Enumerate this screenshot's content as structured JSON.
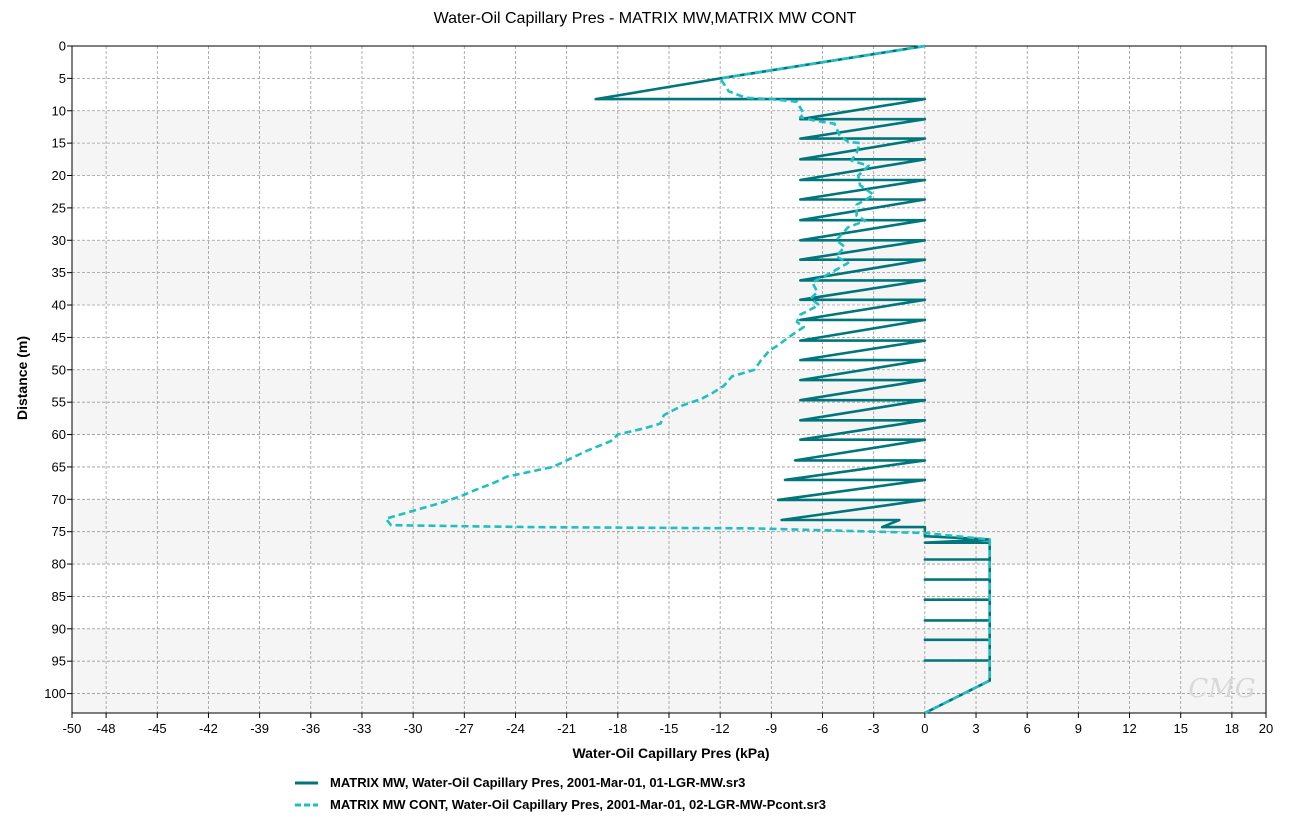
{
  "chart_data": {
    "type": "line",
    "title": "Water-Oil Capillary Pres - MATRIX MW,MATRIX MW CONT",
    "xlabel": "Water-Oil Capillary Pres (kPa)",
    "ylabel": "Distance (m)",
    "xlim": [
      -50,
      20
    ],
    "ylim": [
      0,
      103
    ],
    "y_inverted": true,
    "x_ticks": [
      -50,
      -48,
      -45,
      -42,
      -39,
      -36,
      -33,
      -30,
      -27,
      -24,
      -21,
      -18,
      -15,
      -12,
      -9,
      -6,
      -3,
      0,
      3,
      6,
      9,
      12,
      15,
      18,
      20
    ],
    "y_ticks": [
      0,
      5,
      10,
      15,
      20,
      25,
      30,
      35,
      40,
      45,
      50,
      55,
      60,
      65,
      70,
      75,
      80,
      85,
      90,
      95,
      100
    ],
    "grid": true,
    "legend_position": "bottom",
    "watermark": "CMG",
    "series": [
      {
        "name": "MATRIX MW, Water-Oil Capillary Pres, 2001-Mar-01, 01-LGR-MW.sr3",
        "color": "#00757a",
        "style": "solid",
        "points": [
          [
            0,
            0
          ],
          [
            -12,
            5
          ],
          [
            -19.3,
            8.2
          ],
          [
            0,
            8.2
          ],
          [
            -7.3,
            11.3
          ],
          [
            0,
            11.3
          ],
          [
            -7.3,
            14.3
          ],
          [
            0,
            14.3
          ],
          [
            -7.3,
            17.5
          ],
          [
            0,
            17.5
          ],
          [
            -7.3,
            20.7
          ],
          [
            0,
            20.7
          ],
          [
            -7.3,
            23.7
          ],
          [
            0,
            23.7
          ],
          [
            -7.3,
            26.9
          ],
          [
            0,
            26.9
          ],
          [
            -7.3,
            30
          ],
          [
            0,
            30
          ],
          [
            -7.3,
            33
          ],
          [
            0,
            33
          ],
          [
            -7.3,
            36.2
          ],
          [
            0,
            36.2
          ],
          [
            -7.3,
            39.2
          ],
          [
            0,
            39.2
          ],
          [
            -7.3,
            42.3
          ],
          [
            0,
            42.3
          ],
          [
            -7.3,
            45.5
          ],
          [
            0,
            45.5
          ],
          [
            -7.3,
            48.5
          ],
          [
            0,
            48.5
          ],
          [
            -7.3,
            51.6
          ],
          [
            0,
            51.6
          ],
          [
            -7.3,
            54.7
          ],
          [
            0,
            54.7
          ],
          [
            -7.3,
            57.8
          ],
          [
            0,
            57.8
          ],
          [
            -7.3,
            60.8
          ],
          [
            0,
            60.8
          ],
          [
            -7.6,
            64
          ],
          [
            0,
            64
          ],
          [
            -8.2,
            67
          ],
          [
            0,
            67
          ],
          [
            -8.6,
            70.1
          ],
          [
            0,
            70.1
          ],
          [
            -8.4,
            73.2
          ],
          [
            -1.5,
            73.2
          ],
          [
            -2.5,
            74.3
          ],
          [
            0,
            74.3
          ],
          [
            0,
            75.7
          ],
          [
            3.8,
            76.2
          ],
          [
            0,
            76.7
          ],
          [
            3.8,
            76.7
          ],
          [
            3.8,
            79.3
          ],
          [
            0,
            79.3
          ],
          [
            3.8,
            79.3
          ],
          [
            3.8,
            82.4
          ],
          [
            0,
            82.4
          ],
          [
            3.8,
            82.4
          ],
          [
            3.8,
            85.5
          ],
          [
            0,
            85.5
          ],
          [
            3.8,
            85.5
          ],
          [
            3.8,
            88.7
          ],
          [
            0,
            88.7
          ],
          [
            3.8,
            88.7
          ],
          [
            3.8,
            91.7
          ],
          [
            0,
            91.7
          ],
          [
            3.8,
            91.7
          ],
          [
            3.8,
            94.9
          ],
          [
            0,
            94.9
          ],
          [
            3.8,
            94.9
          ],
          [
            3.8,
            98
          ],
          [
            0,
            103
          ]
        ]
      },
      {
        "name": "MATRIX MW CONT, Water-Oil Capillary Pres, 2001-Mar-01, 02-LGR-MW-Pcont.sr3",
        "color": "#1fbfc4",
        "style": "dashed",
        "points": [
          [
            0,
            0
          ],
          [
            -12,
            5
          ],
          [
            -11.5,
            7
          ],
          [
            -10.5,
            8
          ],
          [
            -9,
            8.2
          ],
          [
            -7.5,
            8.6
          ],
          [
            -7.1,
            10.5
          ],
          [
            -7.3,
            11
          ],
          [
            -6.5,
            11.5
          ],
          [
            -5.3,
            12
          ],
          [
            -5,
            13.8
          ],
          [
            -4.5,
            14.8
          ],
          [
            -3.8,
            15
          ],
          [
            -4,
            16.5
          ],
          [
            -4.3,
            17.7
          ],
          [
            -3.3,
            18.5
          ],
          [
            -3.9,
            20
          ],
          [
            -3.8,
            21.5
          ],
          [
            -3,
            23
          ],
          [
            -4,
            24.5
          ],
          [
            -4,
            26.2
          ],
          [
            -3.5,
            27
          ],
          [
            -4.5,
            28
          ],
          [
            -5.2,
            30
          ],
          [
            -4.7,
            31
          ],
          [
            -5.2,
            32.5
          ],
          [
            -4.5,
            33.5
          ],
          [
            -5.5,
            35
          ],
          [
            -6.6,
            36.5
          ],
          [
            -6.3,
            38
          ],
          [
            -6.7,
            39
          ],
          [
            -6.2,
            40
          ],
          [
            -7.3,
            41.5
          ],
          [
            -7.5,
            42.6
          ],
          [
            -7.1,
            43.4
          ],
          [
            -8,
            45
          ],
          [
            -8.6,
            46.2
          ],
          [
            -9.1,
            47
          ],
          [
            -9.6,
            48.5
          ],
          [
            -10,
            50
          ],
          [
            -11.3,
            51
          ],
          [
            -11.8,
            52.5
          ],
          [
            -12.4,
            53.5
          ],
          [
            -13.1,
            54.5
          ],
          [
            -14.2,
            55.5
          ],
          [
            -15.3,
            57
          ],
          [
            -15.5,
            58.3
          ],
          [
            -16.4,
            59
          ],
          [
            -18,
            60
          ],
          [
            -18.4,
            61
          ],
          [
            -19.8,
            62.5
          ],
          [
            -21,
            64
          ],
          [
            -21.8,
            65
          ],
          [
            -24.5,
            66.5
          ],
          [
            -25.3,
            67.5
          ],
          [
            -26.3,
            68.5
          ],
          [
            -27.2,
            69.5
          ],
          [
            -28.3,
            70.5
          ],
          [
            -30.3,
            72
          ],
          [
            -31.6,
            73
          ],
          [
            -31.3,
            74
          ],
          [
            -23,
            74.3
          ],
          [
            -10,
            74.5
          ],
          [
            0,
            75.2
          ],
          [
            3.8,
            76.2
          ],
          [
            3.8,
            98
          ],
          [
            0,
            103
          ]
        ]
      }
    ]
  }
}
